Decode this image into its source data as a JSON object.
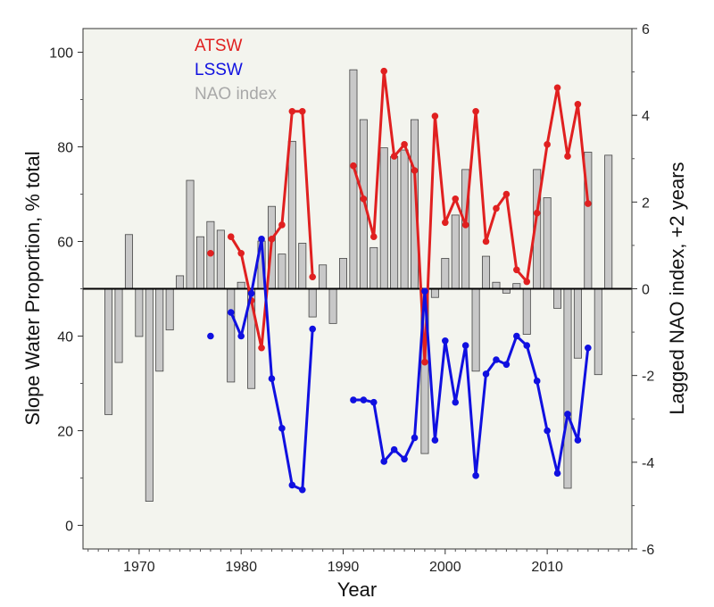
{
  "chart_data": {
    "type": "bar+line",
    "xlabel": "Year",
    "ylabel_left": "Slope Water Proportion, % total",
    "ylabel_right": "Lagged NAO index, +2 years",
    "xlim": [
      1964.5,
      2018.3
    ],
    "ylim_left": [
      -5,
      105
    ],
    "ylim_right": [
      -6,
      6
    ],
    "x_ticks": [
      1970,
      1980,
      1990,
      2000,
      2010
    ],
    "y_ticks_left": [
      0,
      20,
      40,
      60,
      80,
      100
    ],
    "y_ticks_right": [
      -6,
      -4,
      -2,
      0,
      2,
      4,
      6
    ],
    "legend": {
      "position": "top-left",
      "entries": [
        {
          "name": "ATSW",
          "color": "#e02020"
        },
        {
          "name": "LSSW",
          "color": "#1010e0"
        },
        {
          "name": "NAO index",
          "color": "#a8a8a8"
        }
      ]
    },
    "nao": {
      "name": "NAO index",
      "color": "#c8c8c8",
      "x": [
        1967,
        1968,
        1969,
        1970,
        1971,
        1972,
        1973,
        1974,
        1975,
        1976,
        1977,
        1978,
        1979,
        1980,
        1981,
        1982,
        1983,
        1984,
        1985,
        1986,
        1987,
        1988,
        1989,
        1990,
        1991,
        1992,
        1993,
        1994,
        1995,
        1996,
        1997,
        1998,
        1999,
        2000,
        2001,
        2002,
        2003,
        2004,
        2005,
        2006,
        2007,
        2008,
        2009,
        2010,
        2011,
        2012,
        2013,
        2014,
        2015,
        2016
      ],
      "values": [
        -2.9,
        -1.7,
        1.25,
        -1.1,
        -4.9,
        -1.9,
        -0.95,
        0.3,
        2.5,
        1.2,
        1.55,
        1.35,
        -2.15,
        0.15,
        -2.3,
        1.1,
        1.9,
        0.8,
        3.4,
        1.05,
        -0.65,
        0.55,
        -0.8,
        0.7,
        5.05,
        3.9,
        0.95,
        3.25,
        3.05,
        3.2,
        3.9,
        -3.8,
        -0.2,
        0.7,
        1.7,
        2.75,
        -1.9,
        0.75,
        0.15,
        -0.1,
        0.12,
        -1.05,
        2.75,
        2.1,
        -0.45,
        -4.6,
        -1.6,
        3.15,
        -1.98,
        3.08
      ]
    },
    "series": [
      {
        "name": "ATSW",
        "color": "#e02020",
        "segments": [
          {
            "x": [
              1977
            ],
            "y": [
              57.5
            ]
          },
          {
            "x": [
              1979,
              1980,
              1981,
              1982,
              1983,
              1984,
              1985,
              1986,
              1987
            ],
            "y": [
              61,
              57.5,
              47.5,
              37.5,
              60.5,
              63.5,
              87.5,
              87.5,
              52.5
            ]
          },
          {
            "x": [
              1991,
              1992,
              1993,
              1994,
              1995,
              1996,
              1997,
              1998,
              1999,
              2000,
              2001,
              2002,
              2003,
              2004,
              2005,
              2006,
              2007,
              2008,
              2009,
              2010,
              2011,
              2012,
              2013,
              2014
            ],
            "y": [
              76,
              69,
              61,
              96,
              78,
              80.5,
              75,
              34.5,
              86.5,
              64,
              69,
              63.5,
              87.5,
              60,
              67,
              70,
              54,
              51.5,
              66,
              80.5,
              92.5,
              78,
              89,
              68
            ]
          }
        ]
      },
      {
        "name": "LSSW",
        "color": "#1010e0",
        "segments": [
          {
            "x": [
              1977
            ],
            "y": [
              40
            ]
          },
          {
            "x": [
              1979,
              1980,
              1981,
              1982,
              1983,
              1984,
              1985,
              1986,
              1987
            ],
            "y": [
              45,
              40,
              49,
              60.5,
              31,
              20.5,
              8.5,
              7.5,
              41.5
            ]
          },
          {
            "x": [
              1991,
              1992,
              1993,
              1994,
              1995,
              1996,
              1997,
              1998,
              1999,
              2000,
              2001,
              2002,
              2003,
              2004,
              2005,
              2006,
              2007,
              2008,
              2009,
              2010,
              2011,
              2012,
              2013,
              2014
            ],
            "y": [
              26.5,
              26.5,
              26,
              13.5,
              16,
              14,
              18.5,
              49.5,
              18,
              39,
              26,
              38,
              10.5,
              32,
              35,
              34,
              40,
              38,
              30.5,
              20,
              11,
              23.5,
              18,
              37.5
            ]
          }
        ]
      }
    ]
  }
}
